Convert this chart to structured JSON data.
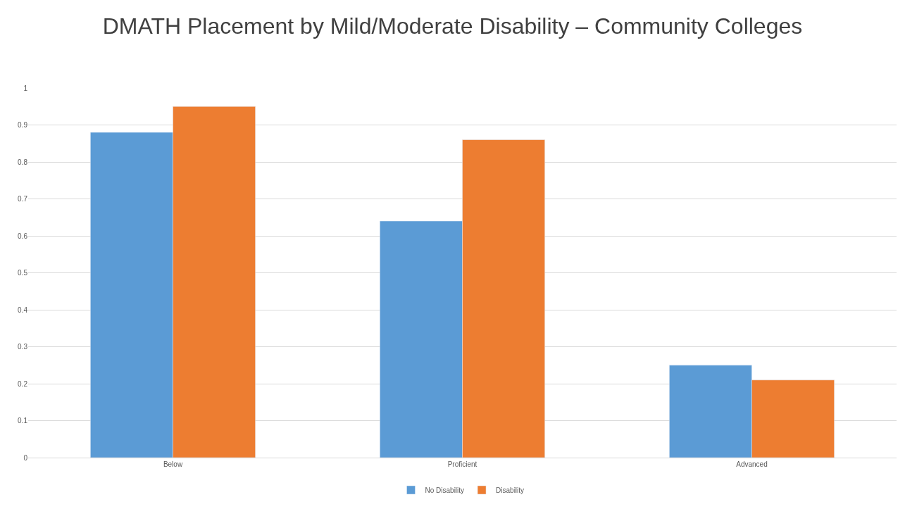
{
  "chart_data": {
    "type": "bar",
    "title": "DMATH Placement by Mild/Moderate Disability – Community Colleges",
    "categories": [
      "Below",
      "Proficient",
      "Advanced"
    ],
    "series": [
      {
        "name": "No Disability",
        "color": "#5b9bd5",
        "values": [
          0.88,
          0.64,
          0.25
        ]
      },
      {
        "name": "Disability",
        "color": "#ed7d31",
        "values": [
          0.95,
          0.86,
          0.21
        ]
      }
    ],
    "ylim": [
      0,
      1
    ],
    "yticks": [
      0,
      0.1,
      0.2,
      0.3,
      0.4,
      0.5,
      0.6,
      0.7,
      0.8,
      0.9,
      1
    ],
    "grid": "y",
    "legend": "bottom"
  }
}
